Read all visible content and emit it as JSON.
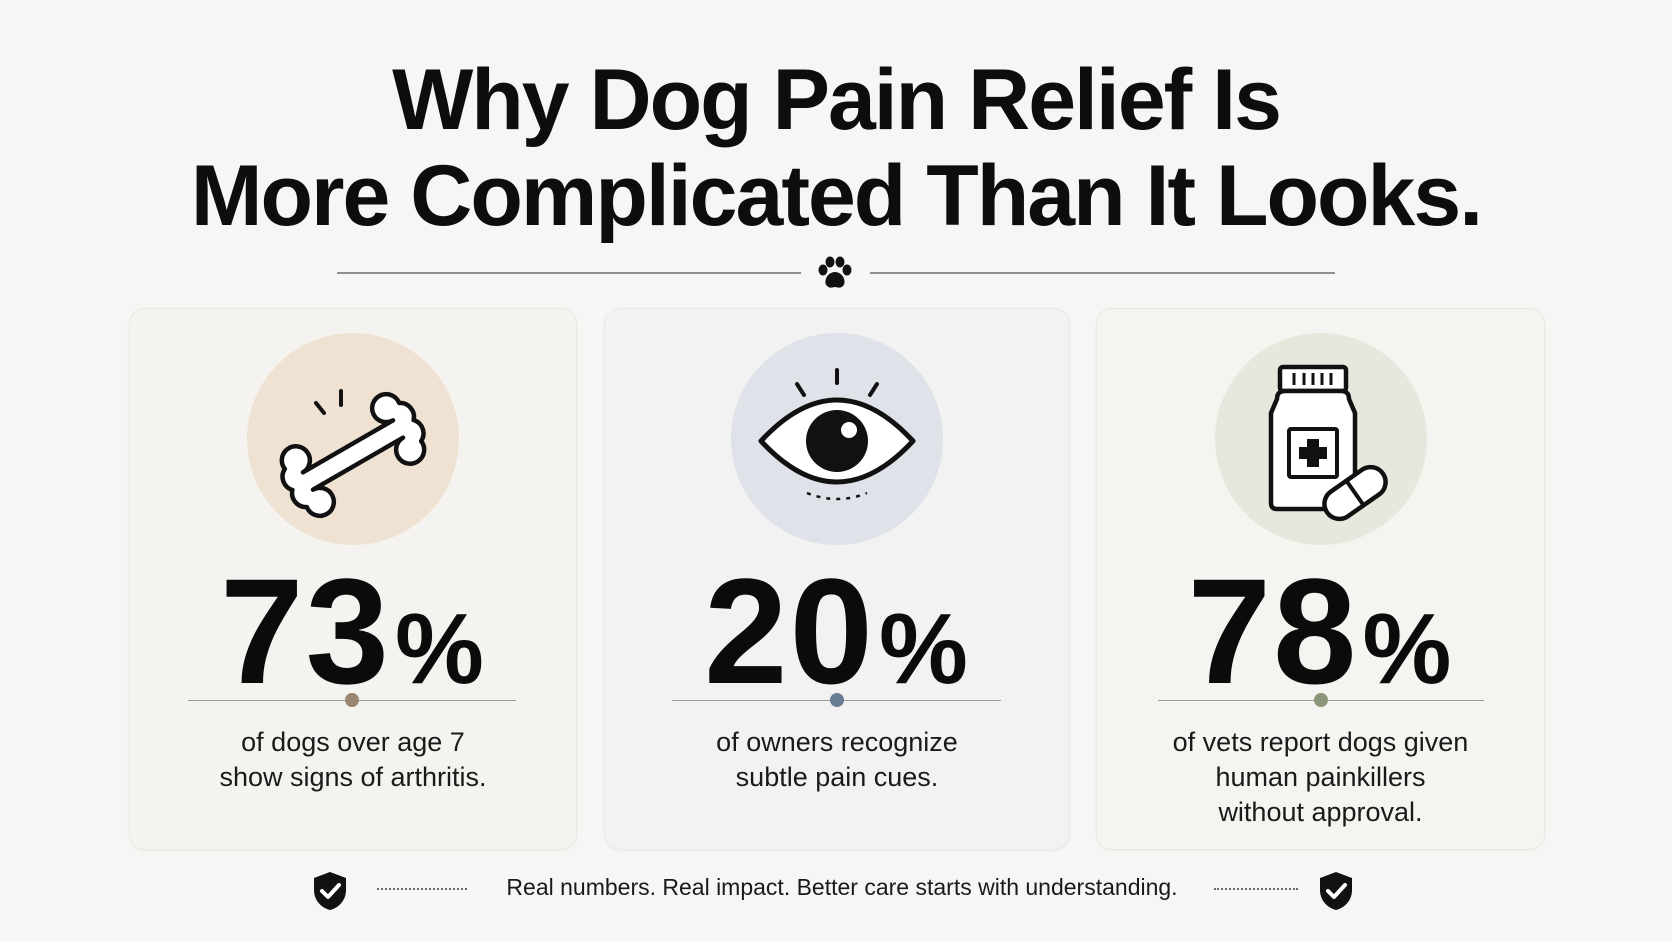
{
  "title": {
    "line1": "Why Dog Pain Relief Is",
    "line2": "More Complicated Than It Looks."
  },
  "divider": {
    "icon": "paw-icon"
  },
  "stats": [
    {
      "icon": "bone-icon",
      "number": "73",
      "unit": "%",
      "caption_line1": "of dogs over age 7",
      "caption_line2": "show signs of arthritis.",
      "accent": "#efe2d2",
      "dot": "#9b8670"
    },
    {
      "icon": "eye-icon",
      "number": "20",
      "unit": "%",
      "caption_line1": "of owners recognize",
      "caption_line2": "subtle pain cues.",
      "accent": "#dfe2e8",
      "dot": "#6a7d94"
    },
    {
      "icon": "medicine-bottle-icon",
      "number": "78",
      "unit": "%",
      "caption_line1": "of vets report dogs given",
      "caption_line2": "human painkillers",
      "caption_line3": "without approval.",
      "accent": "#e5e8dc",
      "dot": "#8a957a"
    }
  ],
  "footer": {
    "text": "Real numbers. Real impact. Better care starts with understanding.",
    "icon": "shield-check-icon"
  }
}
